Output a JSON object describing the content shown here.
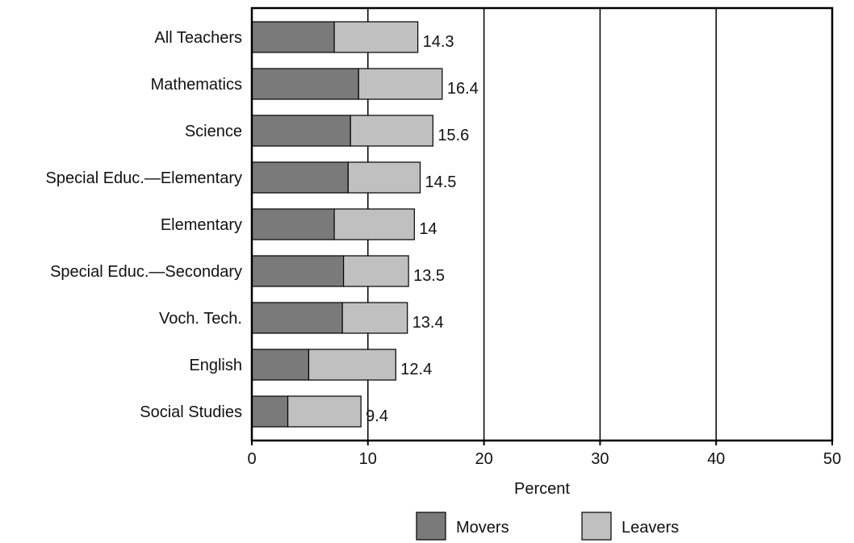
{
  "chart_data": {
    "type": "bar",
    "stacked": true,
    "orientation": "horizontal",
    "categories": [
      "All Teachers",
      "Mathematics",
      "Science",
      "Special Educ.—Elementary",
      "Elementary",
      "Special Educ.—Secondary",
      "Voch. Tech.",
      "English",
      "Social Studies"
    ],
    "series": [
      {
        "name": "Movers",
        "color": "#7a7a7a",
        "values": [
          7.1,
          9.2,
          8.5,
          8.3,
          7.1,
          7.9,
          7.8,
          4.9,
          3.1
        ]
      },
      {
        "name": "Leavers",
        "color": "#c0c0c0",
        "values": [
          7.2,
          7.2,
          7.1,
          6.2,
          6.9,
          5.6,
          5.6,
          7.5,
          6.3
        ]
      }
    ],
    "totals": [
      "14.3",
      "16.4",
      "15.6",
      "14.5",
      "14",
      "13.5",
      "13.4",
      "12.4",
      "9.4"
    ],
    "xlabel": "Percent",
    "xlim": [
      0,
      50
    ],
    "xticks": [
      0,
      10,
      20,
      30,
      40,
      50
    ],
    "grid": "vertical",
    "legend_position": "bottom"
  }
}
